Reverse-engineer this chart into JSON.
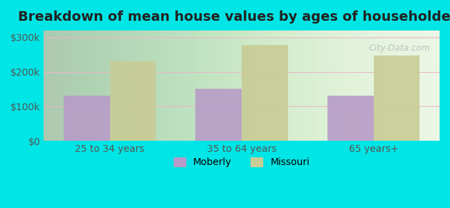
{
  "title": "Breakdown of mean house values by ages of householders",
  "categories": [
    "25 to 34 years",
    "35 to 64 years",
    "65 years+"
  ],
  "moberly_values": [
    130000,
    150000,
    130000
  ],
  "missouri_values": [
    232000,
    278000,
    248000
  ],
  "moberly_color": "#b89cc8",
  "missouri_color": "#c8cc96",
  "ylim": [
    0,
    320000
  ],
  "yticks": [
    0,
    100000,
    200000,
    300000
  ],
  "ytick_labels": [
    "$0",
    "$100k",
    "$200k",
    "$300k"
  ],
  "bar_width": 0.35,
  "background_color": "#e8faf8",
  "plot_bg_start": "#e8f5e0",
  "plot_bg_end": "#ffffff",
  "grid_color": "#e8b8c8",
  "title_fontsize": 14,
  "tick_fontsize": 10,
  "legend_fontsize": 10,
  "watermark": "City-Data.com",
  "outer_bg": "#00e5e5"
}
